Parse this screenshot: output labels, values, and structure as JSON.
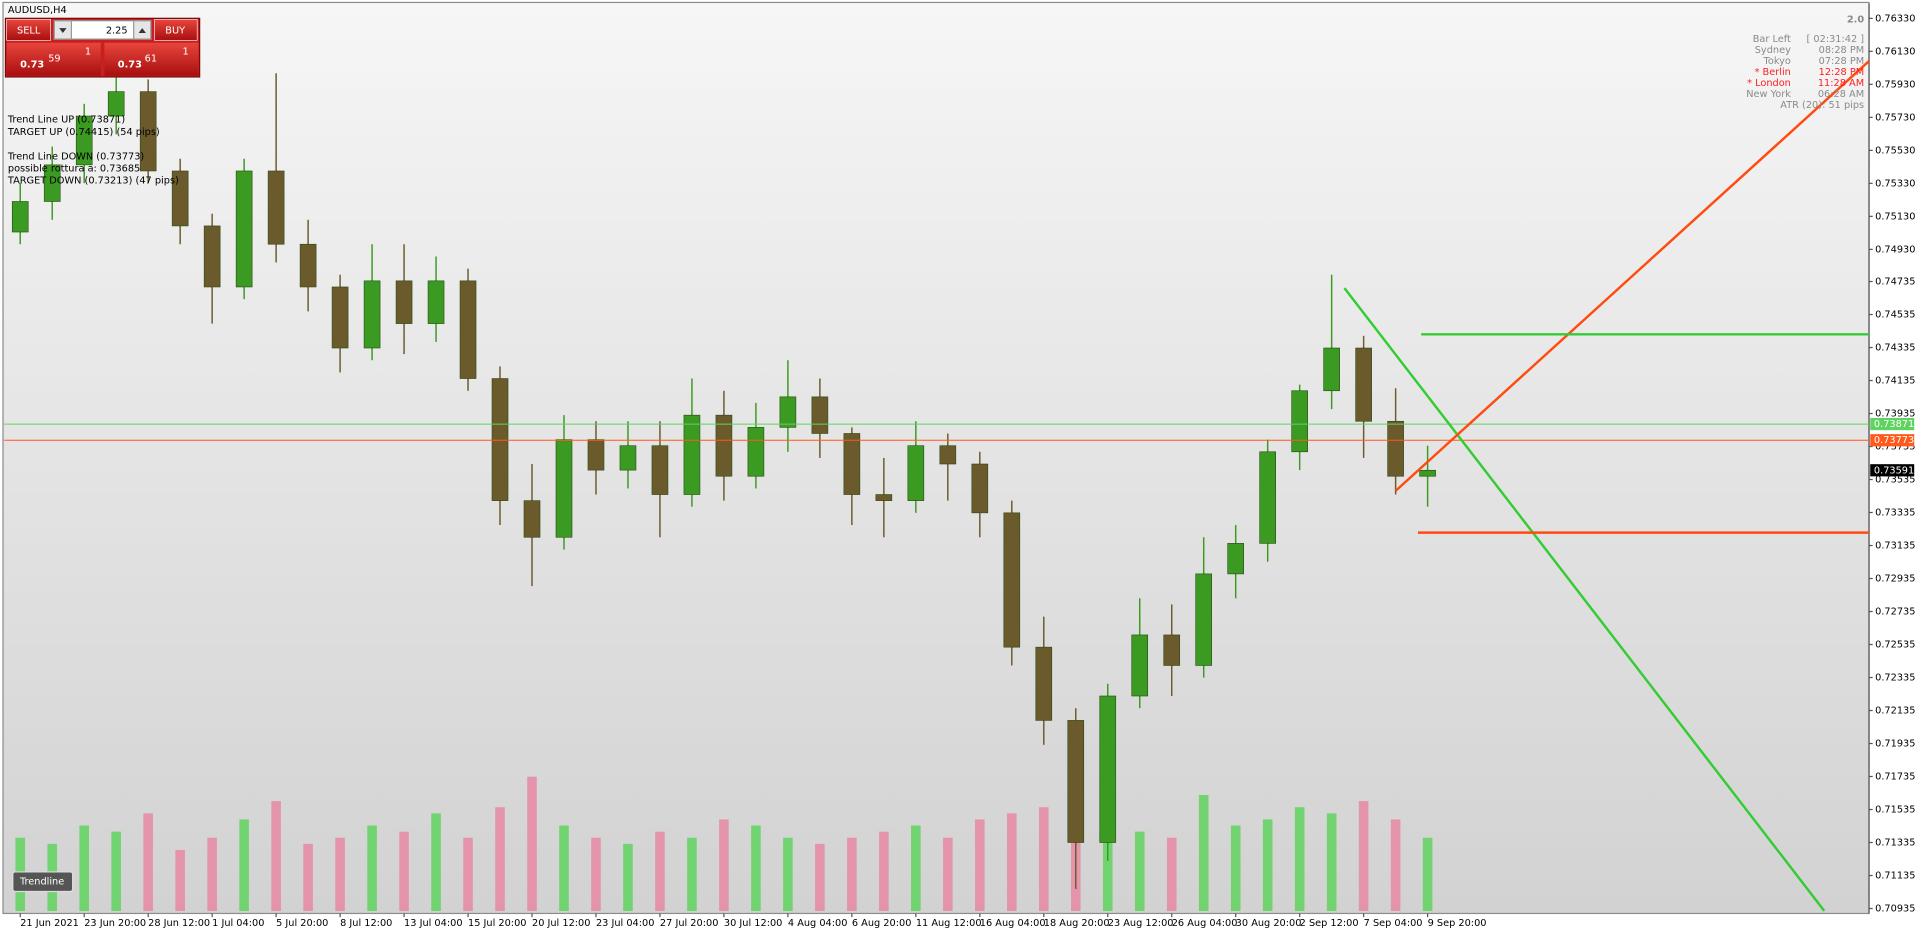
{
  "window": {
    "title": "AUDUSD,H4"
  },
  "trade_panel": {
    "sell": "SELL",
    "buy": "BUY",
    "lot": "2.25",
    "bid": {
      "big": "0.73",
      "pips": "59",
      "point": "1"
    },
    "ask": {
      "big": "0.73",
      "pips": "61",
      "point": "1"
    }
  },
  "info_left": [
    "Trend Line UP (0.73871)",
    "TARGET UP (0.74415) (54 pips)",
    "Trend Line DOWN (0.73773)",
    "possible rottura a: 0.73685",
    "TARGET DOWN (0.73213) (47 pips)"
  ],
  "info_right": {
    "version": "2.0",
    "rows": [
      {
        "label": "Bar Left",
        "time": "[ 02:31:42 ]",
        "color": "#8a8a8a"
      },
      {
        "label": "Sydney",
        "time": "08:28 PM",
        "color": "#8a8a8a"
      },
      {
        "label": "Tokyo",
        "time": "07:28 PM",
        "color": "#8a8a8a"
      },
      {
        "label": "* Berlin",
        "time": "12:28 PM",
        "color": "#ff2020"
      },
      {
        "label": "* London",
        "time": "11:28 AM",
        "color": "#ff2020"
      },
      {
        "label": "New York",
        "time": "06:28 AM",
        "color": "#8a8a8a"
      }
    ],
    "atr": "ATR (20): 51 pips"
  },
  "button": "Trendline",
  "chart_data": {
    "type": "candlestick",
    "categories": [
      "21 Jun 2021",
      null,
      "23 Jun 20:00",
      null,
      "28 Jun 12:00",
      null,
      "1 Jul 04:00",
      null,
      "5 Jul 20:00",
      null,
      "8 Jul 12:00",
      null,
      "13 Jul 04:00",
      null,
      "15 Jul 20:00",
      null,
      "20 Jul 12:00",
      null,
      "23 Jul 04:00",
      null,
      "27 Jul 20:00",
      null,
      "30 Jul 12:00",
      null,
      "4 Aug 04:00",
      null,
      "6 Aug 20:00",
      null,
      "11 Aug 12:00",
      null,
      "16 Aug 04:00",
      null,
      "18 Aug 20:00",
      null,
      "23 Aug 12:00",
      null,
      "26 Aug 04:00",
      null,
      "30 Aug 20:00",
      null,
      "2 Sep 12:00",
      null,
      "7 Sep 04:00",
      null,
      "9 Sep 20:00"
    ],
    "open": [
      0.75035,
      0.7522,
      0.75442,
      0.75738,
      0.75886,
      0.75405,
      0.75072,
      0.74702,
      0.75405,
      0.74961,
      0.74702,
      0.74332,
      0.74739,
      0.7448,
      0.74739,
      0.74147,
      0.73407,
      0.73185,
      0.73777,
      0.73592,
      0.7374,
      0.73444,
      0.73925,
      0.73555,
      0.73851,
      0.74036,
      0.73814,
      0.73444,
      0.73407,
      0.7374,
      0.73629,
      0.73333,
      0.72519,
      0.72075,
      0.71335,
      0.72223,
      0.72593,
      0.72408,
      0.72963,
      0.73148,
      0.73703,
      0.74073,
      0.74332,
      0.73888,
      0.73555
    ],
    "high": [
      0.75331,
      0.75553,
      0.75812,
      0.75982,
      0.7596,
      0.75479,
      0.75146,
      0.75479,
      0.75997,
      0.75109,
      0.74776,
      0.74961,
      0.74961,
      0.74887,
      0.74813,
      0.74221,
      0.73629,
      0.73925,
      0.73888,
      0.73888,
      0.73888,
      0.74147,
      0.74073,
      0.73999,
      0.74258,
      0.74147,
      0.73851,
      0.73666,
      0.73888,
      0.73814,
      0.73703,
      0.73407,
      0.72704,
      0.72149,
      0.72297,
      0.72815,
      0.72778,
      0.73185,
      0.73259,
      0.73777,
      0.7411,
      0.74776,
      0.74406,
      0.74088,
      0.7374
    ],
    "low": [
      0.74961,
      0.75109,
      0.75331,
      0.75627,
      0.75331,
      0.74961,
      0.7448,
      0.74628,
      0.7485,
      0.74554,
      0.74184,
      0.74258,
      0.74295,
      0.74369,
      0.74073,
      0.73259,
      0.72889,
      0.73111,
      0.73444,
      0.73481,
      0.73185,
      0.7337,
      0.73407,
      0.73481,
      0.73703,
      0.73666,
      0.73259,
      0.73185,
      0.73333,
      0.73407,
      0.73185,
      0.72408,
      0.71927,
      0.71054,
      0.71224,
      0.72149,
      0.72223,
      0.72334,
      0.72815,
      0.73037,
      0.73592,
      0.73962,
      0.73666,
      0.73444,
      0.7337
    ],
    "close": [
      0.7522,
      0.75442,
      0.75738,
      0.75886,
      0.75405,
      0.75072,
      0.74702,
      0.75405,
      0.74961,
      0.74702,
      0.74332,
      0.74739,
      0.7448,
      0.74739,
      0.74147,
      0.73407,
      0.73185,
      0.73777,
      0.73592,
      0.7374,
      0.73444,
      0.73925,
      0.73555,
      0.73851,
      0.74036,
      0.73814,
      0.73444,
      0.73407,
      0.7374,
      0.73629,
      0.73333,
      0.72519,
      0.72075,
      0.71335,
      0.72223,
      0.72593,
      0.72408,
      0.72963,
      0.73148,
      0.73703,
      0.74073,
      0.74332,
      0.73888,
      0.73555,
      0.73591
    ],
    "volume": [
      60,
      55,
      70,
      65,
      80,
      50,
      60,
      75,
      90,
      55,
      60,
      70,
      65,
      80,
      60,
      85,
      110,
      70,
      60,
      55,
      65,
      60,
      75,
      70,
      60,
      55,
      60,
      65,
      70,
      60,
      75,
      80,
      85,
      90,
      70,
      65,
      60,
      95,
      70,
      75,
      85,
      80,
      90,
      75,
      60
    ],
    "up_color": "#3a9a22",
    "down_color": "#6b5a2c",
    "volume_up_color": "#5fd35f",
    "volume_down_color": "#e68aa5",
    "xlim": [
      -0.5,
      57.8
    ],
    "ylim": [
      0.70905,
      0.76419
    ],
    "yticks": [
      {
        "value": 0.7633,
        "label": "0.76330"
      },
      {
        "value": 0.7613,
        "label": "0.76130"
      },
      {
        "value": 0.7593,
        "label": "0.75930"
      },
      {
        "value": 0.7573,
        "label": "0.75730"
      },
      {
        "value": 0.7553,
        "label": "0.75530"
      },
      {
        "value": 0.7533,
        "label": "0.75330"
      },
      {
        "value": 0.7513,
        "label": "0.75130"
      },
      {
        "value": 0.7493,
        "label": "0.74930"
      },
      0.74735,
      0.74535,
      0.74335,
      0.74135,
      0.73935,
      0.73735,
      0.73535,
      0.73335,
      0.73135,
      0.72935,
      0.72735,
      0.72535,
      0.72335,
      0.72135,
      0.71935,
      0.71735,
      0.71535,
      0.71335,
      0.71135,
      0.70935
    ],
    "levels": [
      {
        "value": 0.73871,
        "color": "#5fd35f"
      },
      {
        "value": 0.73773,
        "color": "#ff5a1a"
      }
    ],
    "current_price": 0.73591,
    "trend_lines": [
      {
        "color": "#33cc33",
        "x": [
          41.4,
          56.4
        ],
        "y": [
          0.74695,
          0.70921
        ]
      },
      {
        "color": "#ff4a10",
        "x": [
          43,
          57.8
        ],
        "y": [
          0.73466,
          0.76071
        ]
      },
      {
        "color": "#33cc33",
        "x": [
          43.8,
          57.8
        ],
        "y": [
          0.74415,
          0.74415
        ]
      },
      {
        "color": "#ff4a10",
        "x": [
          43.7,
          57.8
        ],
        "y": [
          0.73213,
          0.73213
        ]
      }
    ]
  }
}
